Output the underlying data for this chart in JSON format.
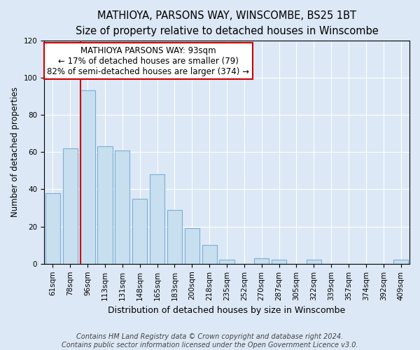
{
  "title": "MATHIOYA, PARSONS WAY, WINSCOMBE, BS25 1BT",
  "subtitle": "Size of property relative to detached houses in Winscombe",
  "xlabel": "Distribution of detached houses by size in Winscombe",
  "ylabel": "Number of detached properties",
  "bar_labels": [
    "61sqm",
    "78sqm",
    "96sqm",
    "113sqm",
    "131sqm",
    "148sqm",
    "165sqm",
    "183sqm",
    "200sqm",
    "218sqm",
    "235sqm",
    "252sqm",
    "270sqm",
    "287sqm",
    "305sqm",
    "322sqm",
    "339sqm",
    "357sqm",
    "374sqm",
    "392sqm",
    "409sqm"
  ],
  "bar_values": [
    38,
    62,
    93,
    63,
    61,
    35,
    48,
    29,
    19,
    10,
    2,
    0,
    3,
    2,
    0,
    2,
    0,
    0,
    0,
    0,
    2
  ],
  "bar_color": "#c8dff0",
  "bar_edge_color": "#7bafd4",
  "vline_color": "#cc0000",
  "vline_index": 1.575,
  "annotation_line1": "MATHIOYA PARSONS WAY: 93sqm",
  "annotation_line2": "← 17% of detached houses are smaller (79)",
  "annotation_line3": "82% of semi-detached houses are larger (374) →",
  "annotation_box_color": "#ffffff",
  "annotation_box_edge": "#cc0000",
  "ylim": [
    0,
    120
  ],
  "yticks": [
    0,
    20,
    40,
    60,
    80,
    100,
    120
  ],
  "footer1": "Contains HM Land Registry data © Crown copyright and database right 2024.",
  "footer2": "Contains public sector information licensed under the Open Government Licence v3.0.",
  "background_color": "#dce8f5",
  "plot_bg_color": "#dce8f5",
  "grid_color": "#ffffff",
  "title_fontsize": 10.5,
  "subtitle_fontsize": 9.5,
  "xlabel_fontsize": 9,
  "ylabel_fontsize": 8.5,
  "tick_fontsize": 7.5,
  "annotation_fontsize": 8.5,
  "footer_fontsize": 7
}
